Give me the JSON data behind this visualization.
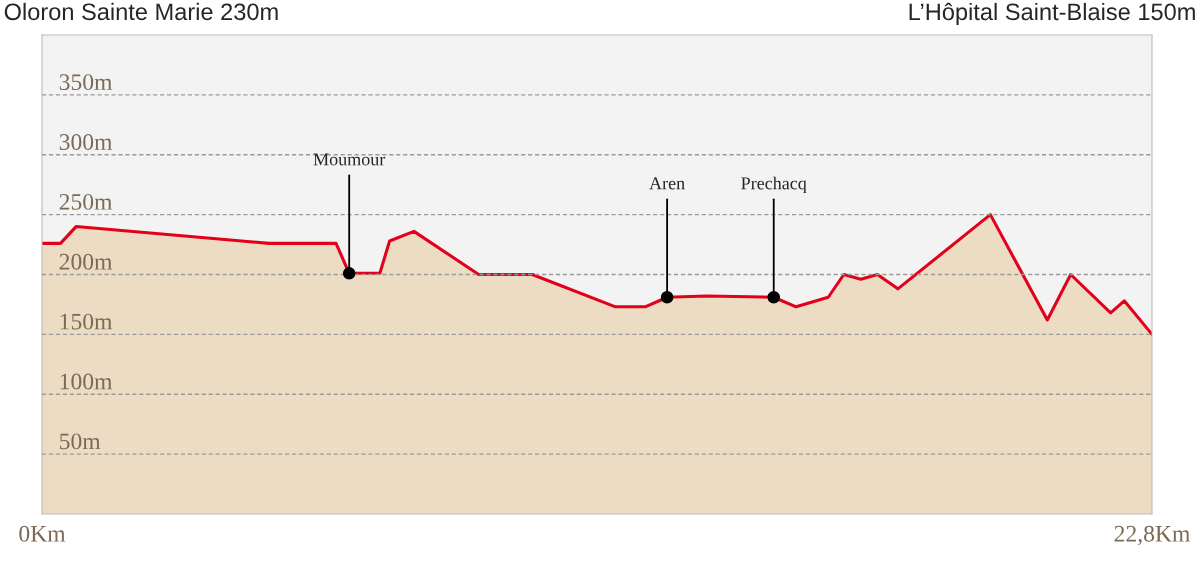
{
  "chart_data": {
    "type": "area",
    "title": "Oloron Sainte Marie 230m",
    "subtitle": "L’Hôpital Saint-Blaise 150m",
    "x": [
      0,
      0.38,
      0.7,
      4.66,
      6.04,
      6.31,
      6.94,
      7.14,
      7.64,
      8.97,
      10.07,
      11.78,
      12.39,
      12.84,
      13.64,
      15.03,
      15.49,
      16.15,
      16.47,
      16.82,
      17.16,
      17.58,
      19.48,
      20.65,
      21.13,
      21.95,
      22.23,
      22.8
    ],
    "series": [
      {
        "color": "#e2001a",
        "values": [
          226,
          226,
          240,
          226,
          226,
          201,
          201,
          228,
          236,
          200,
          200,
          173,
          173,
          181,
          182,
          181,
          173,
          181,
          200,
          196,
          200,
          188,
          250,
          162,
          200,
          168,
          178,
          150
        ]
      }
    ],
    "annotations": [
      {
        "text": "Moumour",
        "x": 6.31,
        "y": 201
      },
      {
        "text": "Aren",
        "x": 12.84,
        "y": 181
      },
      {
        "text": "Prechacq",
        "x": 15.03,
        "y": 181
      }
    ],
    "xlim": [
      0,
      22.8
    ],
    "xticks": [
      {
        "value": 0,
        "label": "0Km"
      },
      {
        "value": 22.8,
        "label": "22,8Km"
      }
    ],
    "ylim": [
      0,
      400
    ],
    "yticks": [
      {
        "value": 50,
        "label": "50m"
      },
      {
        "value": 100,
        "label": "100m"
      },
      {
        "value": 150,
        "label": "150m"
      },
      {
        "value": 200,
        "label": "200m"
      },
      {
        "value": 250,
        "label": "250m"
      },
      {
        "value": 300,
        "label": "300m"
      },
      {
        "value": 350,
        "label": "350m"
      }
    ],
    "grid": "y",
    "line_style": "solid",
    "marker": "none"
  }
}
